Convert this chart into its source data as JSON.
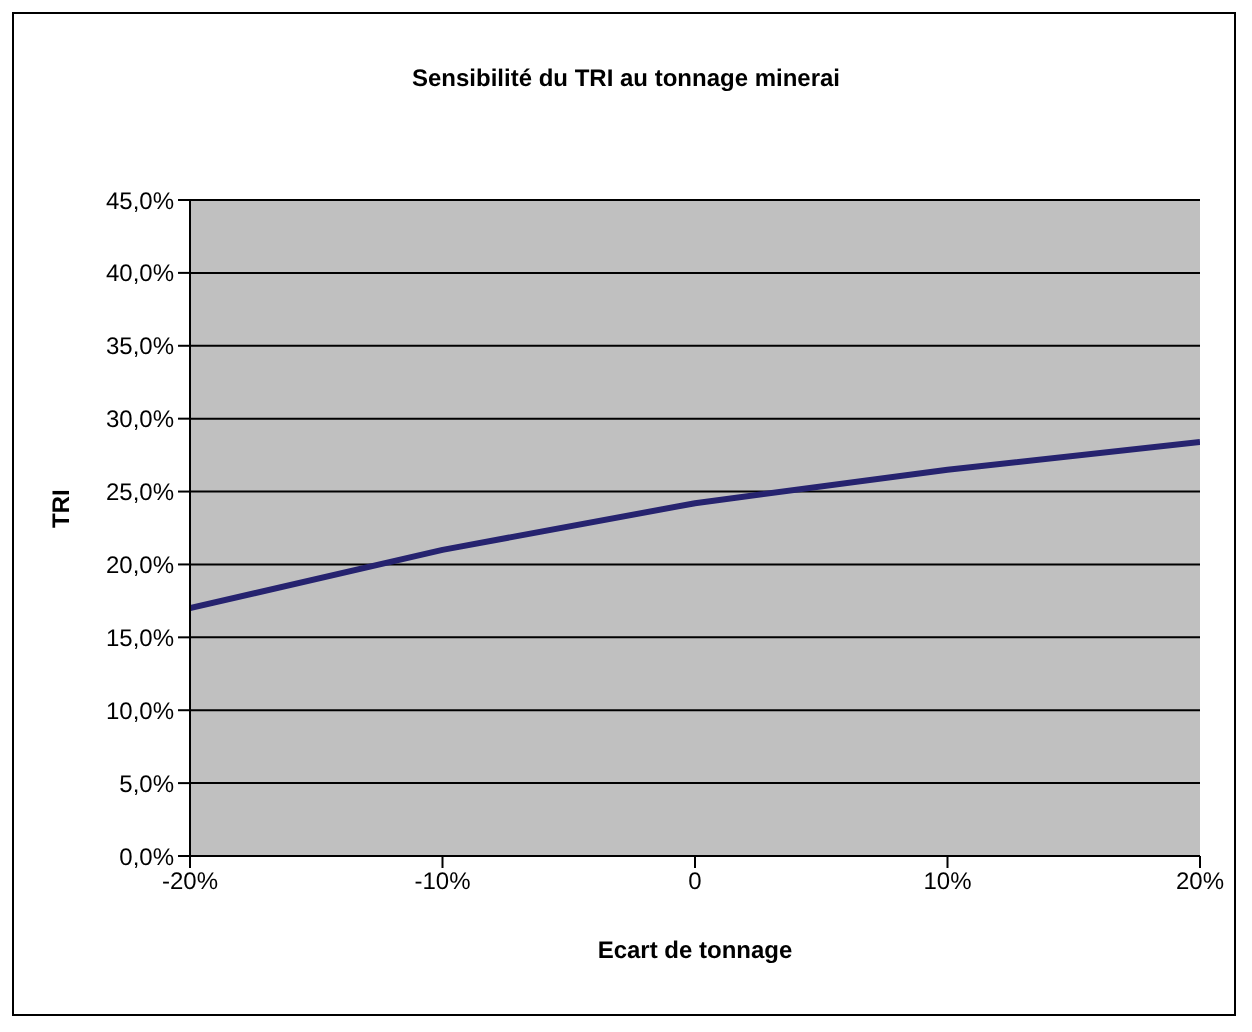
{
  "chart_data": {
    "type": "line",
    "title": "Sensibilité du TRI au tonnage minerai",
    "xlabel": "Ecart de tonnage",
    "ylabel": "TRI",
    "x": [
      -20,
      -10,
      0,
      10,
      20
    ],
    "series": [
      {
        "color": "#26236f",
        "values": [
          17.0,
          21.0,
          24.2,
          26.5,
          28.4
        ]
      }
    ],
    "xlim": [
      -20,
      20
    ],
    "xticks": [
      {
        "value": -20,
        "label": "-20%"
      },
      {
        "value": -10,
        "label": "-10%"
      },
      {
        "value": 0,
        "label": "0"
      },
      {
        "value": 10,
        "label": "10%"
      },
      {
        "value": 20,
        "label": "20%"
      }
    ],
    "ylim": [
      0,
      45
    ],
    "yticks": [
      {
        "value": 0,
        "label": "0,0%"
      },
      {
        "value": 5,
        "label": "5,0%"
      },
      {
        "value": 10,
        "label": "10,0%"
      },
      {
        "value": 15,
        "label": "15,0%"
      },
      {
        "value": 20,
        "label": "20,0%"
      },
      {
        "value": 25,
        "label": "25,0%"
      },
      {
        "value": 30,
        "label": "30,0%"
      },
      {
        "value": 35,
        "label": "35,0%"
      },
      {
        "value": 40,
        "label": "40,0%"
      },
      {
        "value": 45,
        "label": "45,0%"
      }
    ],
    "grid": "y",
    "legend": false,
    "marker": "none",
    "line_style": "solid"
  }
}
